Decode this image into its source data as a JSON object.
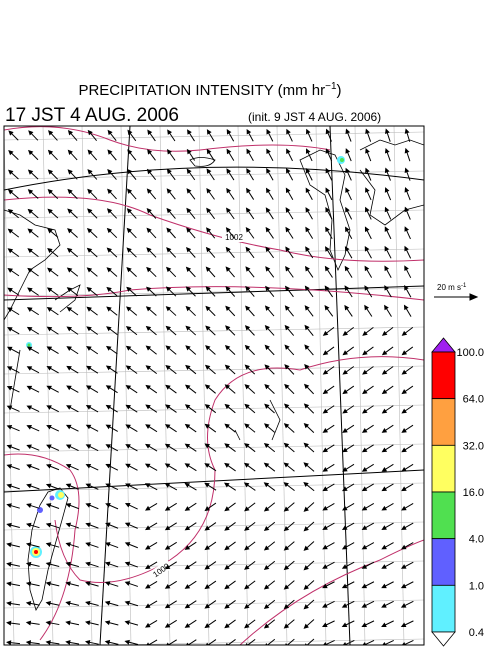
{
  "header": {
    "title": "PRECIPITATION INTENSITY (mm hr",
    "title_unit_exponent": "−1",
    "title_close": ")",
    "valid_time": "17 JST 4 AUG. 2006",
    "init_time": "(init. 9 JST 4 AUG. 2006)"
  },
  "vector_scale": {
    "label": "20 m s",
    "exponent": "-1"
  },
  "contours": [
    {
      "label": "1002"
    },
    {
      "label": "1000"
    }
  ],
  "colorbar": {
    "labels": [
      "100.0",
      "64.0",
      "32.0",
      "16.0",
      "4.0",
      "1.0",
      "0.4"
    ],
    "over_color": "#a020f0",
    "under_color": "#ffffff",
    "colors": [
      "#ff0000",
      "#ffa040",
      "#ffff60",
      "#50e050",
      "#6060ff",
      "#60f0ff"
    ]
  }
}
